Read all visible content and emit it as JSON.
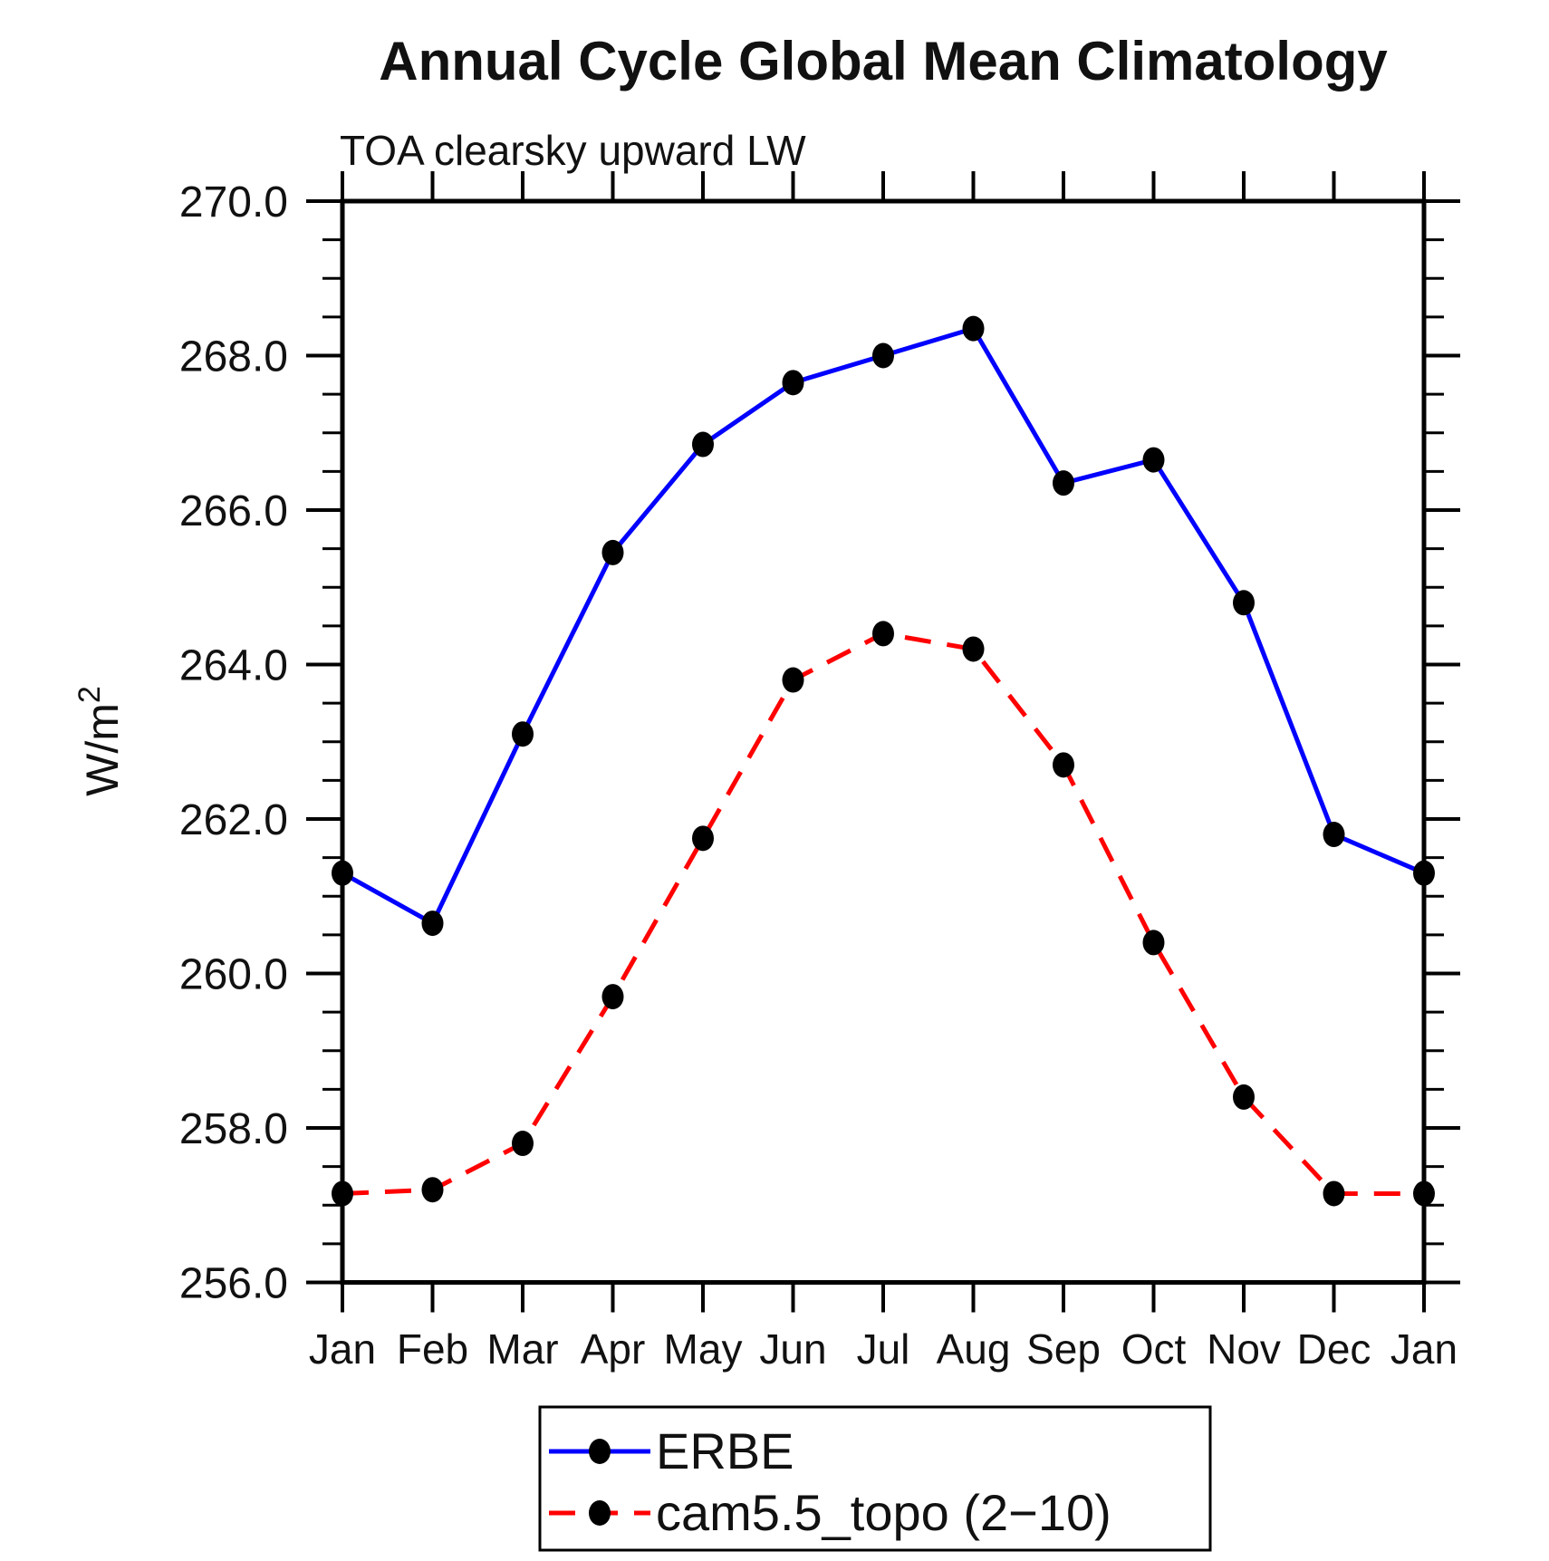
{
  "page": {
    "background": "#ffffff"
  },
  "chart_data": {
    "type": "line",
    "title": "Annual Cycle Global Mean Climatology",
    "subtitle": "TOA clearsky upward LW",
    "ylabel": "W/m²",
    "ylabel_base": "W/m",
    "ylabel_sup": "2",
    "categories": [
      "Jan",
      "Feb",
      "Mar",
      "Apr",
      "May",
      "Jun",
      "Jul",
      "Aug",
      "Sep",
      "Oct",
      "Nov",
      "Dec",
      "Jan"
    ],
    "ylim": [
      256.0,
      270.0
    ],
    "ytick_step": 2.0,
    "ytick_minor_step": 0.5,
    "ytick_labels": [
      "270.0",
      "268.0",
      "266.0",
      "264.0",
      "262.0",
      "260.0",
      "258.0",
      "256.0"
    ],
    "grid": false,
    "legend_position": "bottom-center",
    "axis_color": "#000000",
    "marker_color": "#000000",
    "series": [
      {
        "name": "ERBE",
        "color": "#0000ff",
        "style": "solid",
        "marker": "filled-circle",
        "values": [
          261.3,
          260.65,
          263.1,
          265.45,
          266.85,
          267.65,
          268.0,
          268.35,
          266.35,
          266.65,
          264.8,
          261.8,
          261.3
        ]
      },
      {
        "name": "cam5.5_topo (2−10)",
        "color": "#ff0000",
        "style": "dashed",
        "marker": "filled-circle",
        "values": [
          257.15,
          257.2,
          257.8,
          259.7,
          261.75,
          263.8,
          264.4,
          264.2,
          262.7,
          260.4,
          258.4,
          257.15,
          257.15
        ]
      }
    ]
  }
}
